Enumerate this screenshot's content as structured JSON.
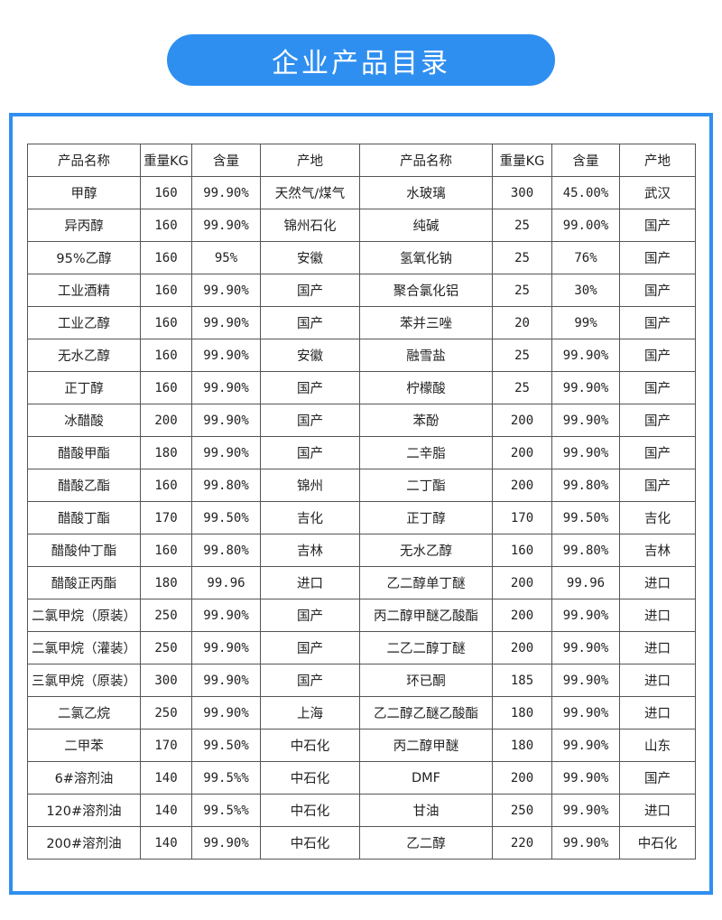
{
  "title": "企业产品目录",
  "colors": {
    "accent": "#2f8ff0"
  },
  "table": {
    "headers": [
      "产品名称",
      "重量KG",
      "含量",
      "产地",
      "产品名称",
      "重量KG",
      "含量",
      "产地"
    ],
    "rows": [
      [
        "甲醇",
        "160",
        "99.90%",
        "天然气/煤气",
        "水玻璃",
        "300",
        "45.00%",
        "武汉"
      ],
      [
        "异丙醇",
        "160",
        "99.90%",
        "锦州石化",
        "纯碱",
        "25",
        "99.00%",
        "国产"
      ],
      [
        "95%乙醇",
        "160",
        "95%",
        "安徽",
        "氢氧化钠",
        "25",
        "76%",
        "国产"
      ],
      [
        "工业酒精",
        "160",
        "99.90%",
        "国产",
        "聚合氯化铝",
        "25",
        "30%",
        "国产"
      ],
      [
        "工业乙醇",
        "160",
        "99.90%",
        "国产",
        "苯并三唑",
        "20",
        "99%",
        "国产"
      ],
      [
        "无水乙醇",
        "160",
        "99.90%",
        "安徽",
        "融雪盐",
        "25",
        "99.90%",
        "国产"
      ],
      [
        "正丁醇",
        "160",
        "99.90%",
        "国产",
        "柠檬酸",
        "25",
        "99.90%",
        "国产"
      ],
      [
        "冰醋酸",
        "200",
        "99.90%",
        "国产",
        "苯酚",
        "200",
        "99.90%",
        "国产"
      ],
      [
        "醋酸甲酯",
        "180",
        "99.90%",
        "国产",
        "二辛脂",
        "200",
        "99.90%",
        "国产"
      ],
      [
        "醋酸乙酯",
        "160",
        "99.80%",
        "锦州",
        "二丁酯",
        "200",
        "99.80%",
        "国产"
      ],
      [
        "醋酸丁酯",
        "170",
        "99.50%",
        "吉化",
        "正丁醇",
        "170",
        "99.50%",
        "吉化"
      ],
      [
        "醋酸仲丁酯",
        "160",
        "99.80%",
        "吉林",
        "无水乙醇",
        "160",
        "99.80%",
        "吉林"
      ],
      [
        "醋酸正丙酯",
        "180",
        "99.96",
        "进口",
        "乙二醇单丁醚",
        "200",
        "99.96",
        "进口"
      ],
      [
        "二氯甲烷（原装）",
        "250",
        "99.90%",
        "国产",
        "丙二醇甲醚乙酸酯",
        "200",
        "99.90%",
        "进口"
      ],
      [
        "二氯甲烷（灌装）",
        "250",
        "99.90%",
        "国产",
        "二乙二醇丁醚",
        "200",
        "99.90%",
        "进口"
      ],
      [
        "三氯甲烷（原装）",
        "300",
        "99.90%",
        "国产",
        "环已酮",
        "185",
        "99.90%",
        "进口"
      ],
      [
        "二氯乙烷",
        "250",
        "99.90%",
        "上海",
        "乙二醇乙醚乙酸酯",
        "180",
        "99.90%",
        "进口"
      ],
      [
        "二甲苯",
        "170",
        "99.50%",
        "中石化",
        "丙二醇甲醚",
        "180",
        "99.90%",
        "山东"
      ],
      [
        "6#溶剂油",
        "140",
        "99.5%%",
        "中石化",
        "DMF",
        "200",
        "99.90%",
        "国产"
      ],
      [
        "120#溶剂油",
        "140",
        "99.5%%",
        "中石化",
        "甘油",
        "250",
        "99.90%",
        "进口"
      ],
      [
        "200#溶剂油",
        "140",
        "99.90%",
        "中石化",
        "乙二醇",
        "220",
        "99.90%",
        "中石化"
      ]
    ]
  }
}
